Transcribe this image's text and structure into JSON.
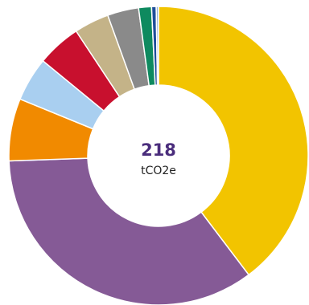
{
  "chart_data": {
    "type": "pie",
    "donut": true,
    "center_value": "218",
    "center_unit": "tCO2e",
    "slices": [
      {
        "value": 40.0,
        "color": "#F2C400"
      },
      {
        "value": 35.0,
        "color": "#855A96"
      },
      {
        "value": 6.8,
        "color": "#F18A00"
      },
      {
        "value": 4.8,
        "color": "#A9CFF0"
      },
      {
        "value": 4.8,
        "color": "#C8102E"
      },
      {
        "value": 3.8,
        "color": "#C4B388"
      },
      {
        "value": 3.4,
        "color": "#8A8A8A"
      },
      {
        "value": 1.4,
        "color": "#0E8A5F"
      },
      {
        "value": 0.5,
        "color": "#1F4E9A"
      },
      {
        "value": 0.25,
        "color": "#9BB7D6"
      }
    ]
  }
}
